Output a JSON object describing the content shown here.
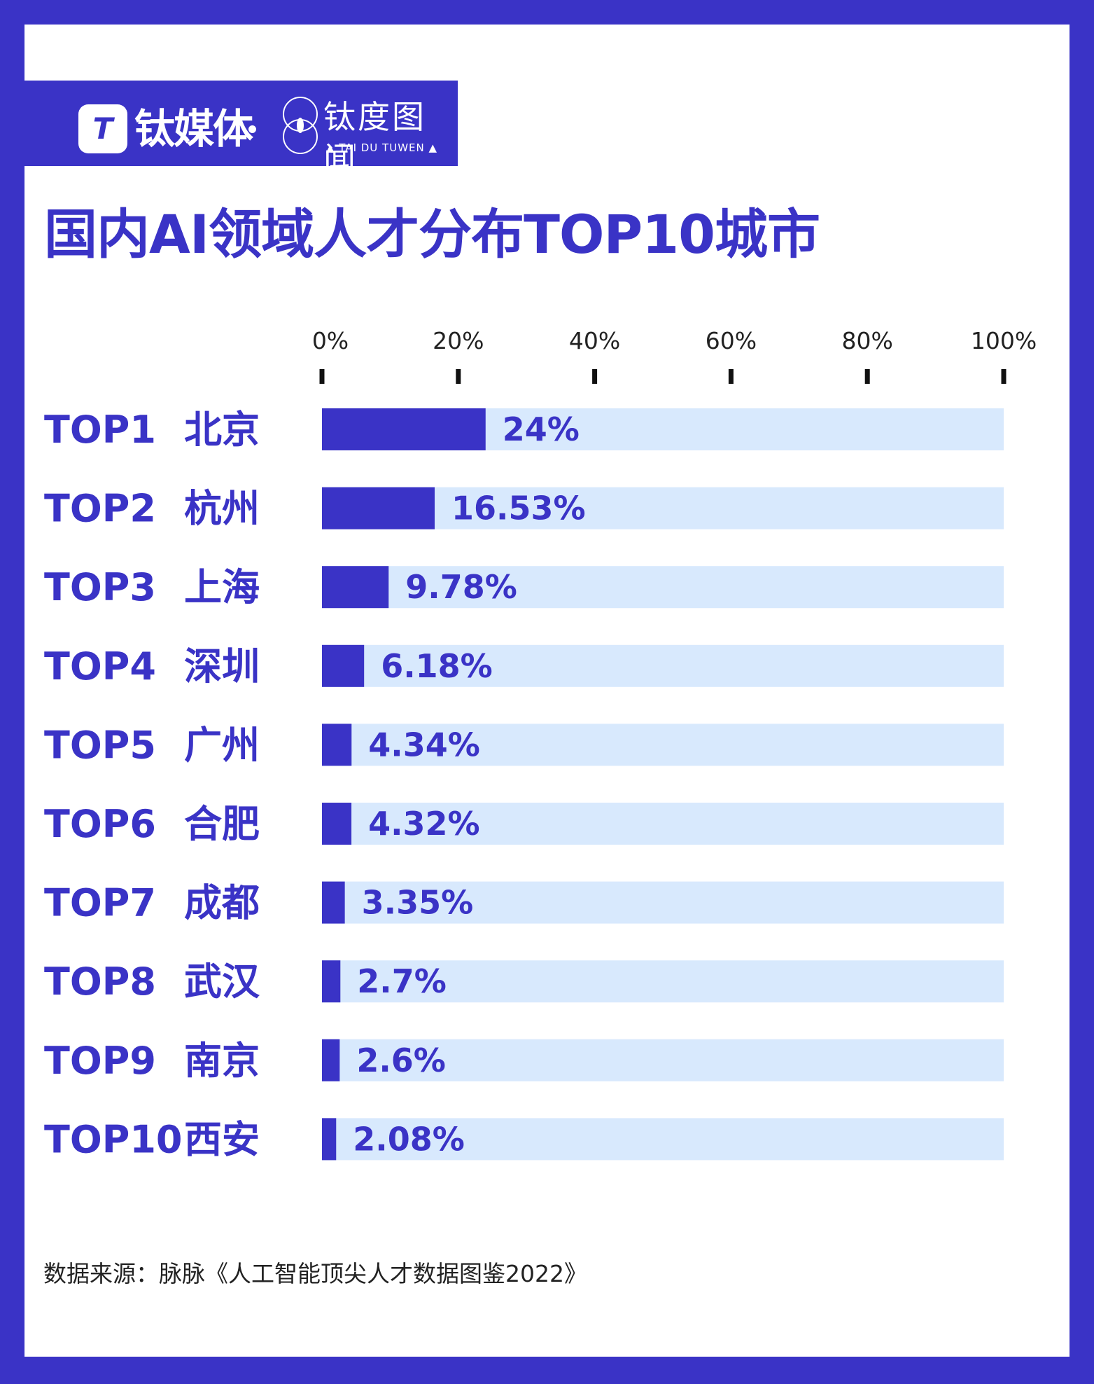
{
  "brand": {
    "logo_letter": "T",
    "name": "钛媒体",
    "sub_name_cn": "钛度图闻",
    "sub_name_en": "▲ TAI DU TUWEN ▲"
  },
  "colors": {
    "accent": "#3a33c6",
    "track": "#d8e9fd",
    "text": "#222222",
    "background": "#ffffff"
  },
  "chart_data": {
    "type": "bar",
    "orientation": "horizontal",
    "title": "国内AI领域人才分布TOP10城市",
    "xlim": [
      0,
      100
    ],
    "x_ticks": [
      "0%",
      "20%",
      "40%",
      "60%",
      "80%",
      "100%"
    ],
    "x_tick_values": [
      0,
      20,
      40,
      60,
      80,
      100
    ],
    "ranks": [
      "TOP1",
      "TOP2",
      "TOP3",
      "TOP4",
      "TOP5",
      "TOP6",
      "TOP7",
      "TOP8",
      "TOP9",
      "TOP10"
    ],
    "categories": [
      "北京",
      "杭州",
      "上海",
      "深圳",
      "广州",
      "合肥",
      "成都",
      "武汉",
      "南京",
      "西安"
    ],
    "values": [
      24,
      16.53,
      9.78,
      6.18,
      4.34,
      4.32,
      3.35,
      2.7,
      2.6,
      2.08
    ],
    "value_labels": [
      "24%",
      "16.53%",
      "9.78%",
      "6.18%",
      "4.34%",
      "4.32%",
      "3.35%",
      "2.7%",
      "2.6%",
      "2.08%"
    ],
    "grid": false,
    "legend": "none"
  },
  "source": "数据来源：脉脉《人工智能顶尖人才数据图鉴2022》"
}
